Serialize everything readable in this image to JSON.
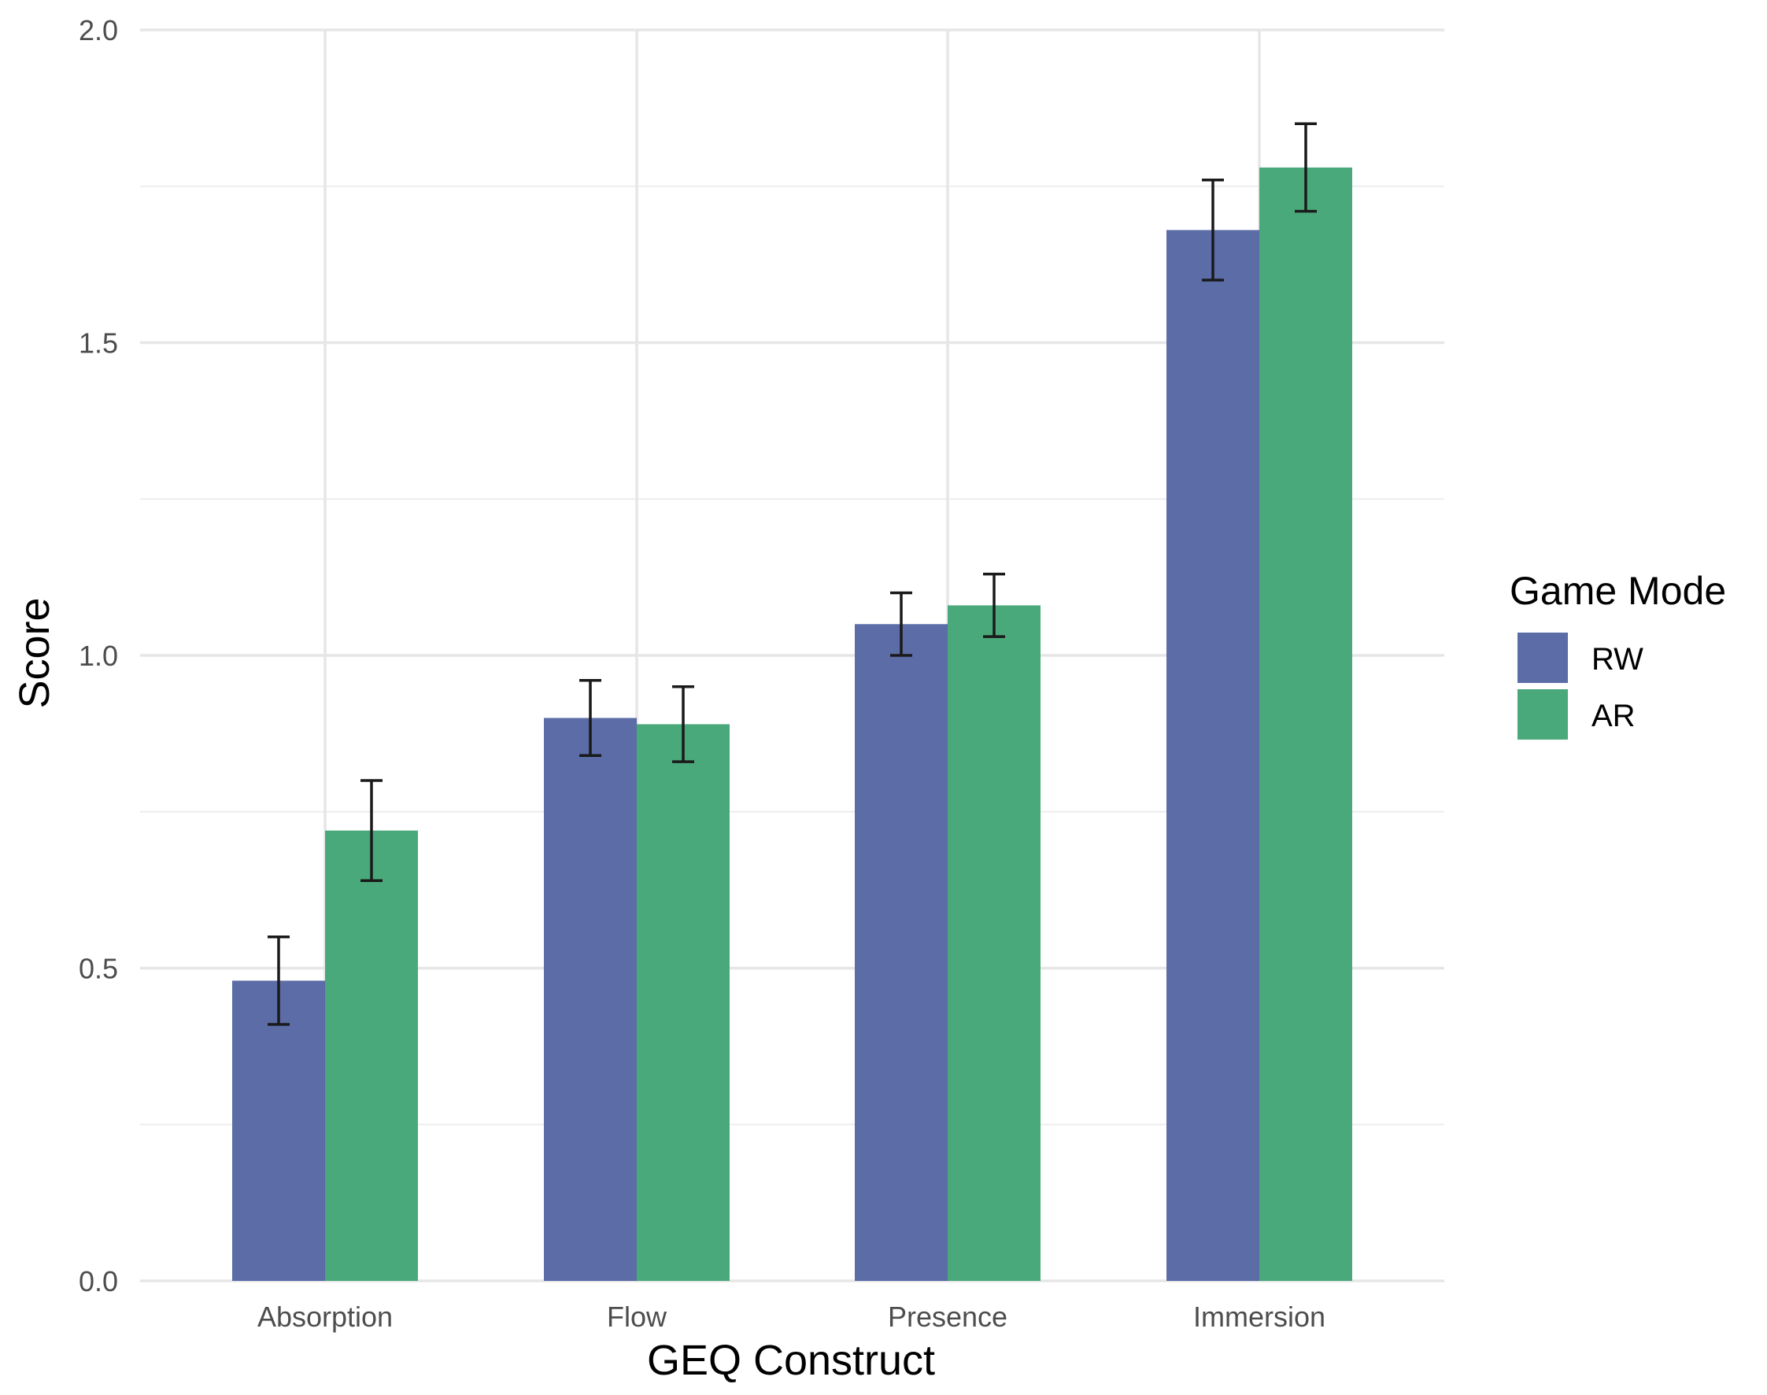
{
  "chart_data": {
    "type": "bar",
    "title": "",
    "xlabel": "GEQ Construct",
    "ylabel": "Score",
    "ylim": [
      0,
      2
    ],
    "yticks": [
      "0.0",
      "0.5",
      "1.0",
      "1.5",
      "2.0"
    ],
    "ytick_values": [
      0,
      0.5,
      1.0,
      1.5,
      2.0
    ],
    "categories": [
      "Absorption",
      "Flow",
      "Presence",
      "Immersion"
    ],
    "series": [
      {
        "name": "RW",
        "color": "#5b6ca7",
        "values": [
          0.48,
          0.9,
          1.05,
          1.68
        ],
        "error_low": [
          0.41,
          0.84,
          1.0,
          1.6
        ],
        "error_high": [
          0.55,
          0.96,
          1.1,
          1.76
        ]
      },
      {
        "name": "AR",
        "color": "#4aa97a",
        "values": [
          0.72,
          0.89,
          1.08,
          1.78
        ],
        "error_low": [
          0.64,
          0.83,
          1.03,
          1.71
        ],
        "error_high": [
          0.8,
          0.95,
          1.13,
          1.85
        ]
      }
    ],
    "grid": true,
    "legend": {
      "title": "Game Mode",
      "position": "right"
    }
  }
}
